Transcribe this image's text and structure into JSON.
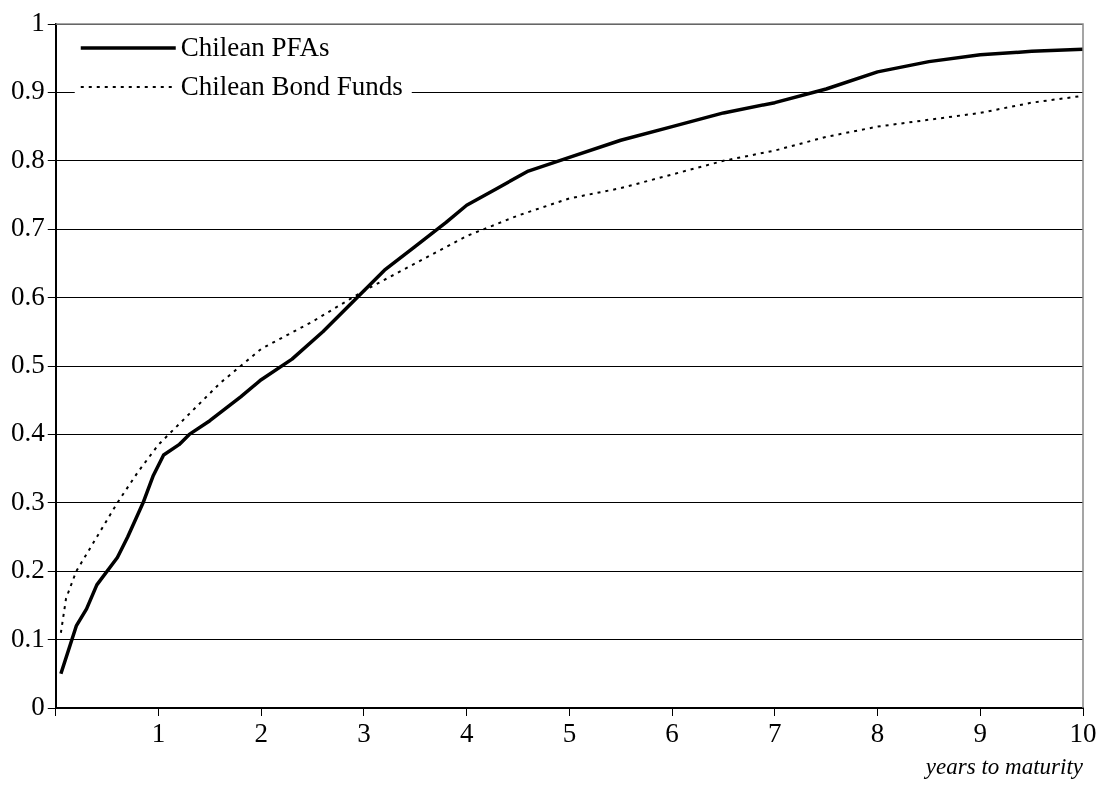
{
  "chart_data": {
    "type": "line",
    "xlabel": "years to maturity",
    "xlim": [
      0,
      10
    ],
    "ylim": [
      0,
      1
    ],
    "xticks": [
      {
        "value": 0,
        "label": null
      },
      1,
      2,
      3,
      4,
      5,
      6,
      7,
      8,
      9,
      10
    ],
    "yticks": [
      0,
      0.1,
      0.2,
      0.3,
      0.4,
      0.5,
      0.6,
      0.7,
      0.8,
      0.9,
      1
    ],
    "grid": "y",
    "legend": "top left",
    "marker": "none",
    "series": [
      {
        "name": "Chilean PFAs",
        "color": "#000000",
        "line_style": "solid",
        "x": [
          0.05,
          0.2,
          0.3,
          0.4,
          0.6,
          0.7,
          0.85,
          0.95,
          1.05,
          1.2,
          1.3,
          1.5,
          1.8,
          2,
          2.3,
          2.6,
          3,
          3.2,
          3.5,
          3.8,
          4,
          4.3,
          4.6,
          5,
          5.5,
          6,
          6.5,
          7,
          7.5,
          8,
          8.5,
          9,
          9.5,
          10
        ],
        "values": [
          0.05,
          0.12,
          0.145,
          0.18,
          0.22,
          0.25,
          0.3,
          0.34,
          0.37,
          0.385,
          0.4,
          0.42,
          0.455,
          0.48,
          0.51,
          0.55,
          0.61,
          0.64,
          0.675,
          0.71,
          0.735,
          0.76,
          0.785,
          0.805,
          0.83,
          0.85,
          0.87,
          0.885,
          0.905,
          0.93,
          0.945,
          0.955,
          0.96,
          0.963
        ]
      },
      {
        "name": "Chilean Bond Funds",
        "color": "#000000",
        "line_style": "dotted",
        "x": [
          0.05,
          0.1,
          0.2,
          0.4,
          0.6,
          0.8,
          1,
          1.3,
          1.6,
          2,
          2.5,
          3,
          3.5,
          4,
          4.5,
          5,
          5.5,
          6,
          6.5,
          7,
          7.5,
          8,
          8.5,
          9,
          9.5,
          10
        ],
        "values": [
          0.11,
          0.16,
          0.2,
          0.25,
          0.3,
          0.345,
          0.385,
          0.43,
          0.475,
          0.525,
          0.565,
          0.61,
          0.65,
          0.69,
          0.72,
          0.745,
          0.76,
          0.78,
          0.8,
          0.815,
          0.835,
          0.85,
          0.86,
          0.87,
          0.885,
          0.895
        ]
      }
    ]
  }
}
